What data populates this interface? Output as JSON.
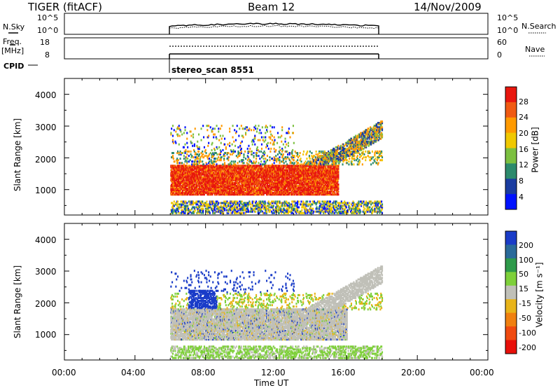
{
  "header": {
    "station": "TIGER (fitACF)",
    "beam": "Beam 12",
    "date": "14/Nov/2009"
  },
  "strips": {
    "nsky_label": "N.Sky",
    "nsky_ticks": [
      "10^5",
      "10^0"
    ],
    "nsearch_label": "N.Search",
    "nsearch_ticks": [
      "10^5",
      "10^0"
    ],
    "freq_label_1": "Freq.",
    "freq_label_2": "[MHz]",
    "freq_ticks": [
      "18",
      "8"
    ],
    "nave_label": "Nave",
    "nave_ticks": [
      "60",
      "0"
    ],
    "cpid_label": "CPID",
    "cpid_value": "stereo_scan 8551"
  },
  "chart_data": [
    {
      "type": "heatmap",
      "name": "power",
      "ylabel": "Slant Range [km]",
      "yticks": [
        1000,
        2000,
        3000,
        4000
      ],
      "ylim": [
        200,
        4500
      ],
      "xlim_hours": [
        0,
        24
      ],
      "colorbar": {
        "label": "Power [dB]",
        "ticks": [
          "28",
          "24",
          "20",
          "16",
          "12",
          "8",
          "4"
        ],
        "colors": [
          "#e8160e",
          "#f05a12",
          "#ff9a00",
          "#f0c800",
          "#7cc040",
          "#2c8a6c",
          "#1a3ca0",
          "#0012ff"
        ]
      },
      "data_window_hours": [
        6,
        18
      ],
      "main_band_km": [
        700,
        1800
      ],
      "upper_band_km": [
        1800,
        3000
      ]
    },
    {
      "type": "heatmap",
      "name": "velocity",
      "ylabel": "Slant Range [km]",
      "yticks": [
        1000,
        2000,
        3000,
        4000
      ],
      "ylim": [
        200,
        4500
      ],
      "xlim_hours": [
        0,
        24
      ],
      "colorbar": {
        "label": "Velocity [m s⁻¹]",
        "ticks": [
          "200",
          "100",
          "50",
          "15",
          "-15",
          "-50",
          "-100",
          "-200"
        ],
        "colors": [
          "#1a3cc8",
          "#2a6a9a",
          "#2e9a4a",
          "#7ed03a",
          "#c0c0b8",
          "#e8b41a",
          "#f08010",
          "#f04a10",
          "#e8100a"
        ]
      },
      "data_window_hours": [
        6,
        18
      ]
    }
  ],
  "xaxis": {
    "ticks": [
      "00:00",
      "04:00",
      "08:00",
      "12:00",
      "16:00",
      "20:00",
      "00:00"
    ],
    "label": "Time UT"
  }
}
